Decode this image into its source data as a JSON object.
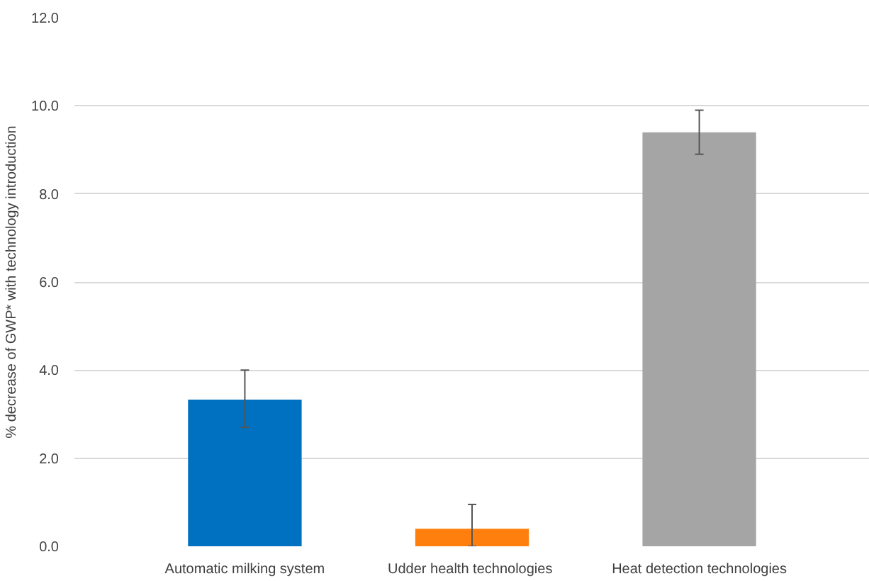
{
  "chart_data": {
    "type": "bar",
    "ylabel": "% decrease of GWP* with technology introduction",
    "categories": [
      "Automatic milking system",
      "Udder health  technologies",
      "Heat detection technologies"
    ],
    "values": [
      3.33,
      0.4,
      9.4
    ],
    "colors": [
      "#0070c0",
      "#ff7f0e",
      "#a5a5a5"
    ],
    "errors": [
      [
        2.7,
        4.0
      ],
      [
        0.0,
        0.95
      ],
      [
        8.9,
        9.9
      ]
    ],
    "ylim": [
      0,
      12
    ],
    "yticks": [
      {
        "value": 0,
        "label": "0.0"
      },
      {
        "value": 2,
        "label": "2.0"
      },
      {
        "value": 4,
        "label": "4.0"
      },
      {
        "value": 6,
        "label": "6.0"
      },
      {
        "value": 8,
        "label": "8.0"
      },
      {
        "value": 10,
        "label": "10.0"
      },
      {
        "value": 12,
        "label": "12.0"
      }
    ],
    "grid": "y"
  }
}
